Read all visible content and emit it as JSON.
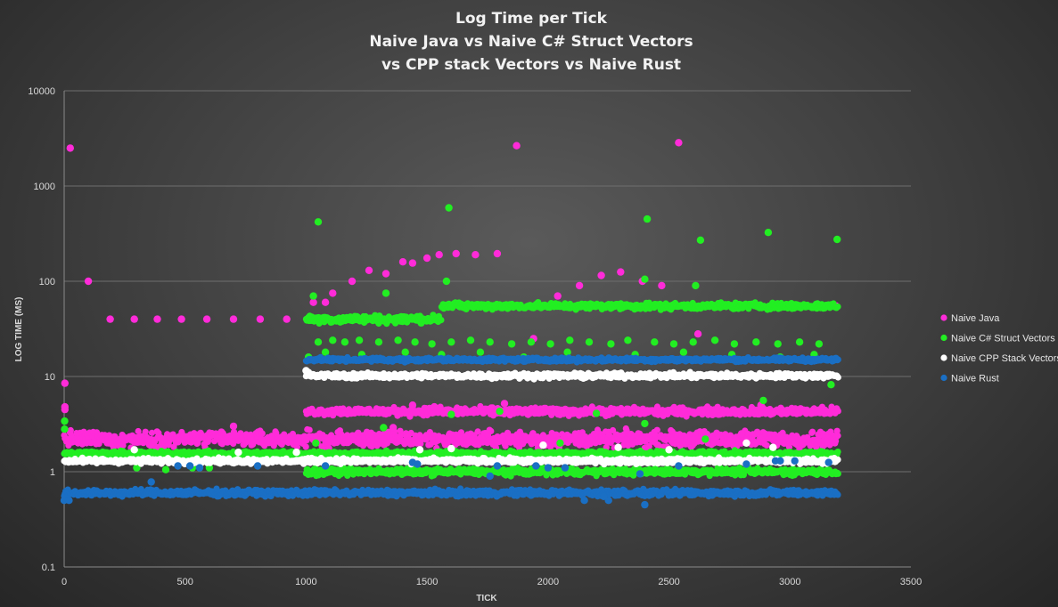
{
  "chart_data": {
    "type": "scatter",
    "title_lines": [
      "Log Time per Tick",
      "Naive Java vs Naive C# Struct Vectors",
      "vs CPP stack Vectors vs Naive Rust"
    ],
    "xlabel": "TICK",
    "ylabel": "LOG TIME (MS)",
    "xlim": [
      0,
      3500
    ],
    "ylim": [
      0.1,
      10000
    ],
    "yscale": "log",
    "x_ticks": [
      0,
      500,
      1000,
      1500,
      2000,
      2500,
      3000,
      3500
    ],
    "y_ticks": [
      0.1,
      1,
      10,
      100,
      1000,
      10000
    ],
    "y_tick_labels": [
      "0.1",
      "1",
      "10",
      "100",
      "1000",
      "10000"
    ],
    "grid": "horizontal",
    "legend_position": "right",
    "series": [
      {
        "name": "Naive Java",
        "color": "#ff2bd9",
        "bands": [
          {
            "x_start": 0,
            "x_end": 3200,
            "y": 2.2,
            "spread": 0.12
          },
          {
            "x_start": 1000,
            "x_end": 3200,
            "y": 4.3,
            "spread": 0.06
          }
        ],
        "points": [
          [
            3,
            8.5
          ],
          [
            3,
            4.8
          ],
          [
            3,
            4.5
          ],
          [
            25,
            2500
          ],
          [
            100,
            100
          ],
          [
            190,
            40
          ],
          [
            290,
            40
          ],
          [
            385,
            40
          ],
          [
            485,
            40
          ],
          [
            590,
            40
          ],
          [
            700,
            40
          ],
          [
            810,
            40
          ],
          [
            920,
            40
          ],
          [
            650,
            2.6
          ],
          [
            700,
            3.0
          ],
          [
            1030,
            60
          ],
          [
            1080,
            60
          ],
          [
            1110,
            75
          ],
          [
            1190,
            100
          ],
          [
            1260,
            130
          ],
          [
            1330,
            120
          ],
          [
            1400,
            160
          ],
          [
            1440,
            155
          ],
          [
            1500,
            175
          ],
          [
            1550,
            190
          ],
          [
            1620,
            195
          ],
          [
            1700,
            190
          ],
          [
            1790,
            195
          ],
          [
            1870,
            2650
          ],
          [
            1940,
            25
          ],
          [
            2040,
            70
          ],
          [
            2130,
            90
          ],
          [
            2220,
            115
          ],
          [
            2300,
            125
          ],
          [
            2390,
            100
          ],
          [
            2470,
            90
          ],
          [
            2540,
            2850
          ],
          [
            2620,
            28
          ],
          [
            2800,
            2.5
          ],
          [
            2880,
            5
          ],
          [
            3190,
            55
          ],
          [
            1360,
            2.9
          ],
          [
            1440,
            5
          ],
          [
            1530,
            4.8
          ],
          [
            1820,
            5.2
          ],
          [
            1960,
            1.8
          ]
        ]
      },
      {
        "name": "Naive C# Struct Vectors",
        "color": "#22ee22",
        "bands": [
          {
            "x_start": 0,
            "x_end": 3200,
            "y": 1.55,
            "spread": 0.04
          },
          {
            "x_start": 1000,
            "x_end": 3200,
            "y": 1.0,
            "spread": 0.05
          },
          {
            "x_start": 1560,
            "x_end": 3200,
            "y": 55,
            "spread": 0.05
          },
          {
            "x_start": 1000,
            "x_end": 1560,
            "y": 40,
            "spread": 0.06
          }
        ],
        "points": [
          [
            2,
            3.4
          ],
          [
            2,
            2.8
          ],
          [
            1050,
            420
          ],
          [
            1590,
            590
          ],
          [
            2410,
            450
          ],
          [
            2630,
            270
          ],
          [
            2910,
            325
          ],
          [
            3195,
            275
          ],
          [
            1030,
            70
          ],
          [
            1330,
            75
          ],
          [
            1580,
            100
          ],
          [
            2400,
            105
          ],
          [
            2610,
            90
          ],
          [
            1040,
            2.0
          ],
          [
            1320,
            2.9
          ],
          [
            2400,
            3.2
          ],
          [
            2890,
            5.6
          ],
          [
            3170,
            8.2
          ],
          [
            1010,
            16
          ],
          [
            1050,
            23
          ],
          [
            1110,
            24
          ],
          [
            1160,
            23
          ],
          [
            1220,
            24
          ],
          [
            1300,
            23
          ],
          [
            1380,
            24
          ],
          [
            1450,
            23
          ],
          [
            1520,
            22
          ],
          [
            1600,
            23
          ],
          [
            1680,
            24
          ],
          [
            1760,
            23
          ],
          [
            1850,
            22
          ],
          [
            1930,
            23
          ],
          [
            2010,
            22
          ],
          [
            2090,
            24
          ],
          [
            2170,
            23
          ],
          [
            2260,
            22
          ],
          [
            2330,
            24
          ],
          [
            2440,
            23
          ],
          [
            2520,
            22
          ],
          [
            2600,
            23
          ],
          [
            2690,
            24
          ],
          [
            2770,
            22
          ],
          [
            2860,
            23
          ],
          [
            2950,
            22
          ],
          [
            3040,
            23
          ],
          [
            3120,
            22
          ],
          [
            1080,
            18
          ],
          [
            1230,
            17
          ],
          [
            1410,
            18
          ],
          [
            1560,
            17
          ],
          [
            1720,
            18
          ],
          [
            1900,
            16
          ],
          [
            2080,
            18
          ],
          [
            2360,
            17
          ],
          [
            2560,
            18
          ],
          [
            2760,
            17
          ],
          [
            2960,
            16
          ],
          [
            3100,
            17
          ],
          [
            1600,
            4.0
          ],
          [
            1800,
            4.3
          ],
          [
            2200,
            4.1
          ],
          [
            2650,
            2.2
          ],
          [
            2050,
            2.0
          ],
          [
            300,
            1.1
          ],
          [
            420,
            1.05
          ],
          [
            530,
            1.1
          ],
          [
            600,
            1.1
          ]
        ]
      },
      {
        "name": "Naive CPP Stack Vectors",
        "color": "#ffffff",
        "bands": [
          {
            "x_start": 0,
            "x_end": 3200,
            "y": 1.3,
            "spread": 0.04
          },
          {
            "x_start": 1000,
            "x_end": 3200,
            "y": 10.2,
            "spread": 0.04
          }
        ],
        "points": [
          [
            1000,
            11.5
          ],
          [
            1010,
            11.0
          ],
          [
            290,
            1.7
          ],
          [
            1980,
            1.9
          ],
          [
            2290,
            1.8
          ],
          [
            2820,
            2.0
          ],
          [
            2930,
            1.8
          ],
          [
            1470,
            1.7
          ],
          [
            1600,
            1.75
          ],
          [
            2500,
            1.7
          ],
          [
            720,
            1.6
          ],
          [
            960,
            1.6
          ]
        ]
      },
      {
        "name": "Naive Rust",
        "color": "#1a6fc4",
        "bands": [
          {
            "x_start": 0,
            "x_end": 3200,
            "y": 0.6,
            "spread": 0.05
          },
          {
            "x_start": 1000,
            "x_end": 3200,
            "y": 15,
            "spread": 0.03
          }
        ],
        "points": [
          [
            360,
            0.78
          ],
          [
            470,
            1.15
          ],
          [
            520,
            1.15
          ],
          [
            560,
            1.1
          ],
          [
            800,
            1.15
          ],
          [
            1080,
            1.15
          ],
          [
            1440,
            1.25
          ],
          [
            1460,
            1.2
          ],
          [
            1790,
            1.15
          ],
          [
            1950,
            1.15
          ],
          [
            2000,
            1.1
          ],
          [
            2070,
            1.1
          ],
          [
            2540,
            1.15
          ],
          [
            2820,
            1.2
          ],
          [
            2940,
            1.3
          ],
          [
            2960,
            1.3
          ],
          [
            3020,
            1.3
          ],
          [
            3160,
            1.25
          ],
          [
            2150,
            0.5
          ],
          [
            2250,
            0.5
          ],
          [
            2400,
            0.45
          ],
          [
            2230,
            0.55
          ],
          [
            0,
            0.5
          ],
          [
            20,
            0.5
          ],
          [
            2380,
            0.95
          ],
          [
            1760,
            0.9
          ]
        ]
      }
    ]
  }
}
